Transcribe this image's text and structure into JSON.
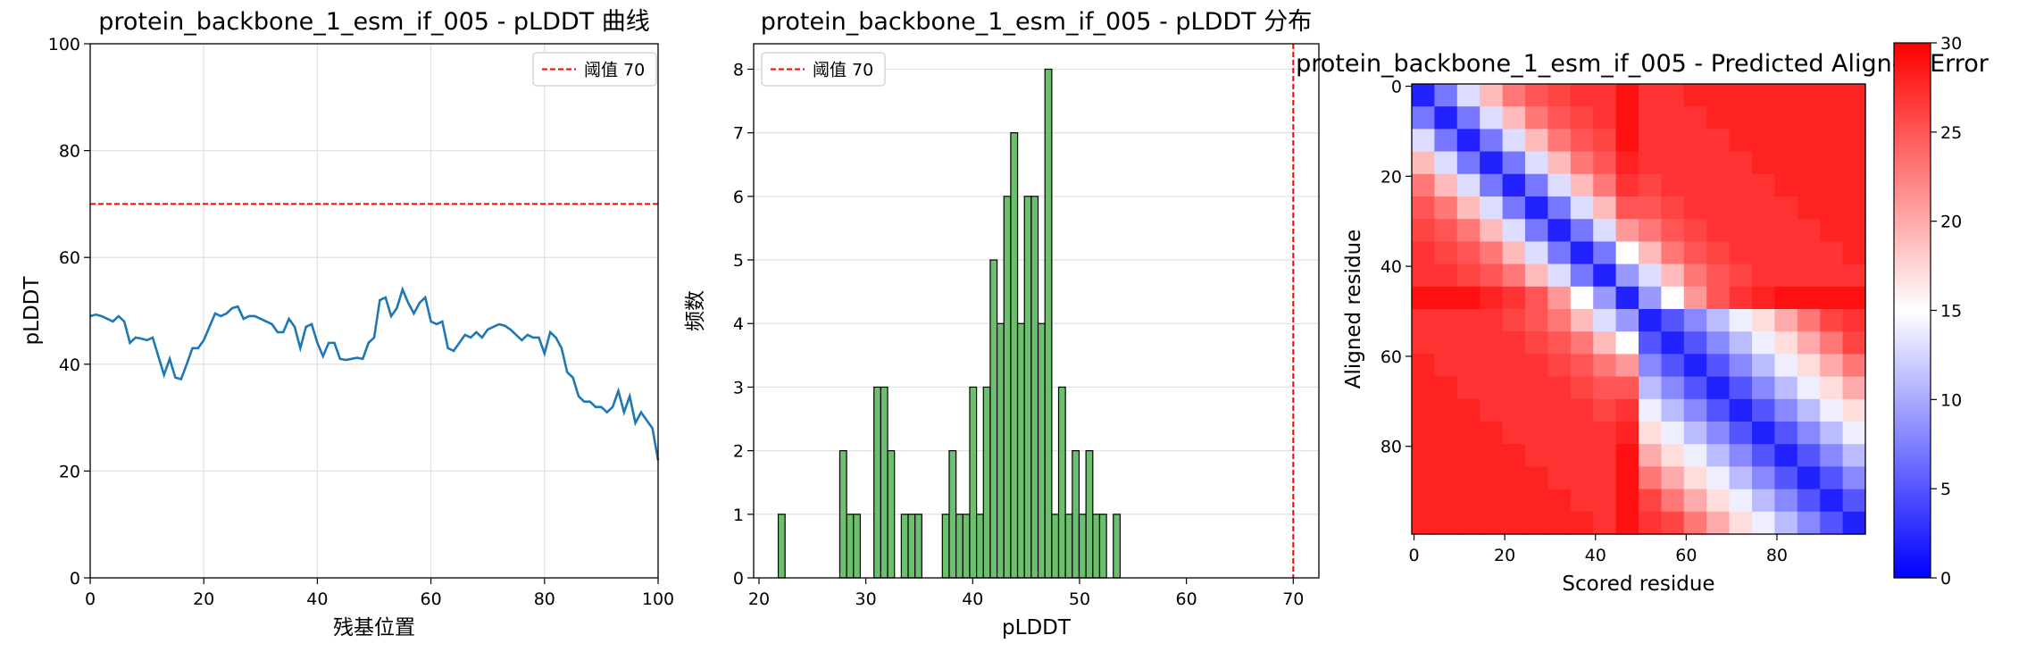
{
  "chart_data": [
    {
      "type": "line",
      "title": "protein_backbone_1_esm_if_005 - pLDDT 曲线",
      "xlabel": "残基位置",
      "ylabel": "pLDDT",
      "x": [
        0,
        1,
        2,
        3,
        4,
        5,
        6,
        7,
        8,
        9,
        10,
        11,
        12,
        13,
        14,
        15,
        16,
        17,
        18,
        19,
        20,
        21,
        22,
        23,
        24,
        25,
        26,
        27,
        28,
        29,
        30,
        31,
        32,
        33,
        34,
        35,
        36,
        37,
        38,
        39,
        40,
        41,
        42,
        43,
        44,
        45,
        46,
        47,
        48,
        49,
        50,
        51,
        52,
        53,
        54,
        55,
        56,
        57,
        58,
        59,
        60,
        61,
        62,
        63,
        64,
        65,
        66,
        67,
        68,
        69,
        70,
        71,
        72,
        73,
        74,
        75,
        76,
        77,
        78,
        79,
        80,
        81,
        82,
        83,
        84,
        85,
        86,
        87,
        88,
        89,
        90,
        91,
        92,
        93,
        94,
        95,
        96,
        97,
        98,
        99,
        100
      ],
      "values": [
        49,
        49.3,
        49,
        48.5,
        48,
        49,
        48,
        44,
        45,
        44.8,
        44.5,
        45,
        41.5,
        38,
        41,
        37.5,
        37.2,
        40,
        43,
        43,
        44.5,
        47,
        49.5,
        49,
        49.5,
        50.5,
        50.8,
        48.5,
        49,
        49,
        48.5,
        48,
        47.5,
        46,
        46,
        48.5,
        47,
        43,
        47,
        47.5,
        44,
        41.5,
        44,
        44,
        41,
        40.8,
        41,
        41.2,
        41,
        44,
        45,
        52,
        52.5,
        49,
        50.5,
        54,
        51.5,
        49.5,
        51.5,
        52.5,
        48,
        47.5,
        48,
        43,
        42.5,
        44,
        45.5,
        45,
        46,
        45,
        46.5,
        47,
        47.5,
        47.2,
        46.5,
        45.5,
        44.5,
        45.5,
        45,
        45,
        42,
        46,
        45,
        43,
        38.5,
        37.5,
        34,
        33,
        33,
        32,
        32,
        31,
        32,
        35,
        31,
        34,
        29,
        31,
        29.5,
        28,
        22
      ],
      "color": "#1f77b4",
      "hlines": [
        {
          "value": 70,
          "label": "阈值 70",
          "color": "#ff0000"
        }
      ],
      "legend": "upper right",
      "xlim": [
        0,
        100
      ],
      "xticks": [
        0,
        20,
        40,
        60,
        80,
        100
      ],
      "ylim": [
        0,
        100
      ],
      "yticks": [
        0,
        20,
        40,
        60,
        80,
        100
      ],
      "grid": "both"
    },
    {
      "type": "histogram",
      "title": "protein_backbone_1_esm_if_005 - pLDDT 分布",
      "xlabel": "pLDDT",
      "ylabel": "频数",
      "bins": [
        21.8,
        22.44,
        23.08,
        23.72,
        24.36,
        25,
        25.64,
        26.28,
        26.92,
        27.56,
        28.2,
        28.84,
        29.48,
        30.12,
        30.76,
        31.4,
        32.04,
        32.68,
        33.32,
        33.96,
        34.6,
        35.24,
        35.88,
        36.52,
        37.16,
        37.8,
        38.44,
        39.08,
        39.72,
        40.36,
        41,
        41.64,
        42.28,
        42.92,
        43.56,
        44.2,
        44.84,
        45.48,
        46.12,
        46.76,
        47.4,
        48.04,
        48.68,
        49.32,
        49.96,
        50.6,
        51.24,
        51.88,
        52.52,
        53.16,
        53.8
      ],
      "counts": [
        1,
        0,
        0,
        0,
        0,
        0,
        0,
        0,
        0,
        2,
        1,
        1,
        0,
        0,
        3,
        3,
        2,
        0,
        1,
        1,
        1,
        0,
        0,
        0,
        1,
        2,
        1,
        1,
        3,
        1,
        3,
        5,
        4,
        6,
        7,
        4,
        6,
        6,
        4,
        8,
        1,
        3,
        1,
        2,
        1,
        2,
        1,
        1,
        0,
        1
      ],
      "color": "#5cb85c",
      "vlines": [
        {
          "value": 70,
          "label": "阈值 70",
          "color": "#ff0000"
        }
      ],
      "legend": "upper left",
      "xlim": [
        19.5,
        72.4
      ],
      "xticks": [
        20,
        30,
        40,
        50,
        60,
        70
      ],
      "ylim": [
        0,
        8.4
      ],
      "yticks": [
        0,
        1,
        2,
        3,
        4,
        5,
        6,
        7,
        8
      ],
      "grid": "y"
    },
    {
      "type": "heatmap",
      "title": "protein_backbone_1_esm_if_005 - Predicted Aligned Error",
      "xlabel": "Scored residue",
      "ylabel": "Aligned residue",
      "colormap": "bwr",
      "clim": [
        0,
        30
      ],
      "cticks": [
        0,
        5,
        10,
        15,
        20,
        25,
        30
      ],
      "xlim": [
        -0.5,
        99.5
      ],
      "xticks": [
        0,
        20,
        40,
        60,
        80
      ],
      "ylim": [
        99.5,
        -0.5
      ],
      "yticks": [
        0,
        20,
        40,
        60,
        80
      ],
      "matrix": [
        [
          2,
          7,
          13,
          19,
          23,
          25,
          26,
          27,
          27,
          29,
          27,
          27,
          28,
          28,
          28,
          28,
          28,
          28,
          28,
          28
        ],
        [
          7,
          2,
          7,
          13,
          19,
          23,
          25,
          26,
          27,
          29,
          27,
          27,
          27,
          28,
          28,
          28,
          28,
          28,
          28,
          28
        ],
        [
          13,
          7,
          2,
          7,
          13,
          19,
          23,
          25,
          26,
          29,
          27,
          27,
          27,
          27,
          28,
          28,
          28,
          28,
          28,
          28
        ],
        [
          19,
          13,
          7,
          2,
          7,
          13,
          19,
          23,
          25,
          28,
          27,
          27,
          27,
          27,
          27,
          28,
          28,
          28,
          28,
          28
        ],
        [
          23,
          19,
          13,
          7,
          2,
          7,
          13,
          19,
          23,
          27,
          26,
          27,
          27,
          27,
          27,
          27,
          28,
          28,
          28,
          28
        ],
        [
          25,
          23,
          19,
          13,
          7,
          2,
          7,
          13,
          19,
          25,
          25,
          26,
          27,
          27,
          27,
          27,
          27,
          28,
          28,
          28
        ],
        [
          26,
          25,
          23,
          19,
          13,
          7,
          2,
          7,
          13,
          21,
          23,
          25,
          26,
          27,
          27,
          27,
          27,
          27,
          28,
          28
        ],
        [
          27,
          26,
          25,
          23,
          19,
          13,
          7,
          2,
          7,
          15,
          19,
          23,
          25,
          26,
          27,
          27,
          27,
          27,
          27,
          28
        ],
        [
          27,
          27,
          26,
          25,
          23,
          19,
          13,
          7,
          2,
          9,
          13,
          19,
          23,
          25,
          26,
          27,
          27,
          27,
          27,
          27
        ],
        [
          29,
          29,
          29,
          28,
          27,
          25,
          21,
          15,
          9,
          2,
          9,
          15,
          21,
          25,
          27,
          28,
          29,
          29,
          29,
          29
        ],
        [
          27,
          27,
          27,
          27,
          26,
          25,
          23,
          19,
          13,
          9,
          2,
          5,
          8,
          11,
          14,
          17,
          20,
          23,
          26,
          27
        ],
        [
          27,
          27,
          27,
          27,
          27,
          26,
          25,
          23,
          19,
          15,
          5,
          2,
          5,
          8,
          11,
          14,
          17,
          20,
          23,
          26
        ],
        [
          28,
          27,
          27,
          27,
          27,
          27,
          26,
          25,
          23,
          21,
          8,
          5,
          2,
          5,
          8,
          11,
          14,
          17,
          20,
          23
        ],
        [
          28,
          28,
          27,
          27,
          27,
          27,
          27,
          26,
          25,
          25,
          11,
          8,
          5,
          2,
          5,
          8,
          11,
          14,
          17,
          20
        ],
        [
          28,
          28,
          28,
          27,
          27,
          27,
          27,
          27,
          26,
          27,
          14,
          11,
          8,
          5,
          2,
          5,
          8,
          11,
          14,
          17
        ],
        [
          28,
          28,
          28,
          28,
          27,
          27,
          27,
          27,
          27,
          28,
          17,
          14,
          11,
          8,
          5,
          2,
          5,
          8,
          11,
          14
        ],
        [
          28,
          28,
          28,
          28,
          28,
          27,
          27,
          27,
          27,
          29,
          20,
          17,
          14,
          11,
          8,
          5,
          2,
          5,
          8,
          11
        ],
        [
          28,
          28,
          28,
          28,
          28,
          28,
          27,
          27,
          27,
          29,
          23,
          20,
          17,
          14,
          11,
          8,
          5,
          2,
          5,
          8
        ],
        [
          28,
          28,
          28,
          28,
          28,
          28,
          28,
          27,
          27,
          29,
          26,
          23,
          20,
          17,
          14,
          11,
          8,
          5,
          2,
          5
        ],
        [
          28,
          28,
          28,
          28,
          28,
          28,
          28,
          28,
          27,
          29,
          27,
          26,
          23,
          20,
          17,
          14,
          11,
          8,
          5,
          2
        ]
      ]
    }
  ]
}
